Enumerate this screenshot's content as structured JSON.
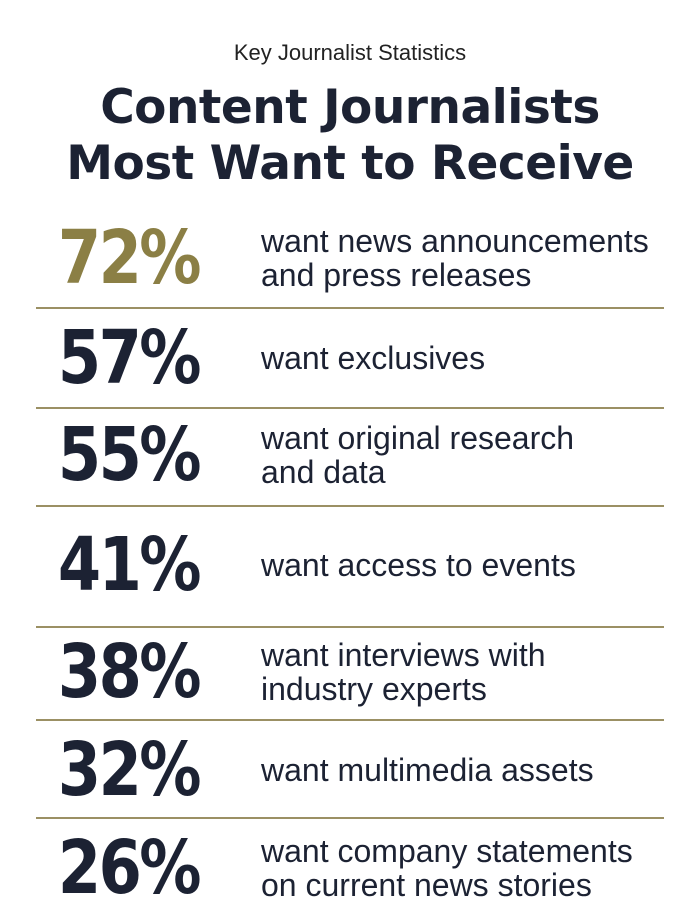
{
  "kicker": "Key Journalist Statistics",
  "title_line1": "Content Journalists",
  "title_line2": "Most Want to Receive",
  "colors": {
    "highlight": "#8b7f45",
    "dark": "#1c2233",
    "divider": "#9b9064"
  },
  "chart_data": {
    "type": "table",
    "title": "Content Journalists Most Want to Receive",
    "subtitle": "Key Journalist Statistics",
    "rows": [
      {
        "value": 72,
        "label": "72%",
        "text": "want news announcements\nand press releases"
      },
      {
        "value": 57,
        "label": "57%",
        "text": "want exclusives"
      },
      {
        "value": 55,
        "label": "55%",
        "text": "want original research\nand data"
      },
      {
        "value": 41,
        "label": "41%",
        "text": "want access to events"
      },
      {
        "value": 38,
        "label": "38%",
        "text": "want interviews with\nindustry experts"
      },
      {
        "value": 32,
        "label": "32%",
        "text": "want multimedia assets"
      },
      {
        "value": 26,
        "label": "26%",
        "text": "want company statements\non current news stories"
      }
    ]
  }
}
